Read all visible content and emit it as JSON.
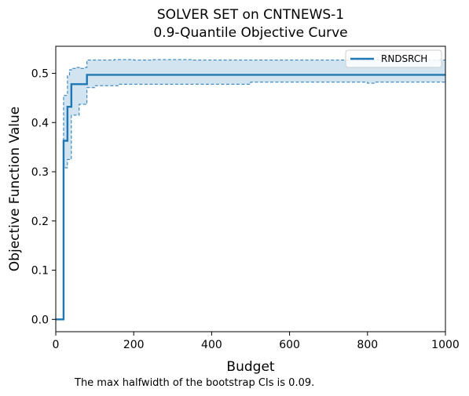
{
  "chart_data": {
    "type": "line",
    "title_line1": "SOLVER SET on CNTNEWS-1",
    "title_line2": "0.9-Quantile Objective Curve",
    "xlabel": "Budget",
    "ylabel": "Objective Function Value",
    "xlim": [
      0,
      1000
    ],
    "ylim": [
      -0.025,
      0.555
    ],
    "xticks": [
      0,
      200,
      400,
      600,
      800,
      1000
    ],
    "xtick_labels": [
      "0",
      "200",
      "400",
      "600",
      "800",
      "1000"
    ],
    "yticks": [
      0.0,
      0.1,
      0.2,
      0.3,
      0.4,
      0.5
    ],
    "ytick_labels": [
      "0.0",
      "0.1",
      "0.2",
      "0.3",
      "0.4",
      "0.5"
    ],
    "grid": false,
    "legend_position": "top-right",
    "footnote": "The max halfwidth of the bootstrap CIs is 0.09.",
    "colors": {
      "line": "#1f77b4",
      "band_fill": "#1f77b4"
    },
    "series": [
      {
        "name": "RNDSRCH",
        "x": [
          0,
          20,
          20,
          25,
          25,
          30,
          30,
          35,
          35,
          40,
          40,
          80,
          80,
          1000
        ],
        "y": [
          0.0,
          0.0,
          0.363,
          0.363,
          0.363,
          0.363,
          0.432,
          0.432,
          0.432,
          0.432,
          0.478,
          0.478,
          0.497,
          0.497
        ]
      }
    ],
    "ci_upper": {
      "x": [
        20,
        20,
        25,
        25,
        30,
        30,
        35,
        35,
        40,
        40,
        50,
        50,
        65,
        65,
        75,
        75,
        80,
        80,
        150,
        150,
        200,
        200,
        250,
        250,
        350,
        350,
        1000
      ],
      "y": [
        0.0,
        0.455,
        0.455,
        0.455,
        0.455,
        0.495,
        0.495,
        0.507,
        0.507,
        0.51,
        0.51,
        0.512,
        0.512,
        0.51,
        0.51,
        0.512,
        0.512,
        0.527,
        0.527,
        0.528,
        0.528,
        0.527,
        0.527,
        0.528,
        0.528,
        0.527,
        0.527
      ]
    },
    "ci_lower": {
      "x": [
        20,
        20,
        25,
        25,
        30,
        30,
        35,
        35,
        40,
        40,
        45,
        45,
        60,
        60,
        80,
        80,
        100,
        100,
        160,
        160,
        500,
        500,
        800,
        800,
        820,
        820,
        1000
      ],
      "y": [
        0.0,
        0.308,
        0.308,
        0.308,
        0.308,
        0.325,
        0.325,
        0.325,
        0.325,
        0.415,
        0.415,
        0.415,
        0.415,
        0.437,
        0.437,
        0.471,
        0.471,
        0.475,
        0.475,
        0.478,
        0.478,
        0.482,
        0.482,
        0.48,
        0.48,
        0.482,
        0.482
      ]
    }
  }
}
